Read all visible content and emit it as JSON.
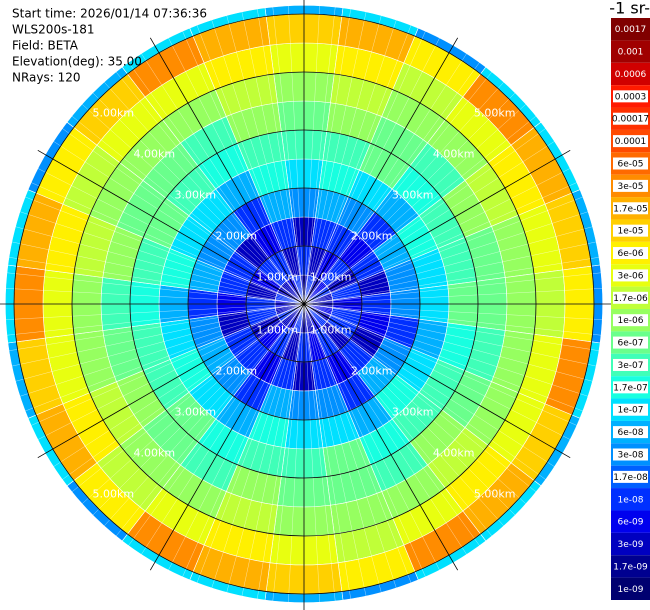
{
  "chart_data": {
    "type": "polar_heatmap",
    "info": [
      "Start time: 2026/01/14 07:36:36",
      "WLS200s-181",
      "Field: BETA",
      "Elevation(deg): 35.00",
      "NRays: 120"
    ],
    "colorbar_title": "-1 sr-",
    "azimuths_deg": [
      0,
      15,
      30,
      45,
      60,
      75,
      90,
      105,
      120,
      135,
      150,
      165,
      180,
      195,
      210,
      225,
      240,
      255,
      270,
      285,
      300,
      315,
      330,
      345
    ],
    "range_edges_km": [
      0,
      0.5,
      1,
      1.5,
      2,
      2.5,
      3,
      3.5,
      4,
      4.5,
      5,
      5.15
    ],
    "range_rings": [
      {
        "value": 1,
        "label": "1.00km"
      },
      {
        "value": 2,
        "label": "2.00km"
      },
      {
        "value": 3,
        "label": "3.00km"
      },
      {
        "value": 4,
        "label": "4.00km"
      },
      {
        "value": 5,
        "label": "5.00km"
      }
    ],
    "levels": [
      {
        "value": 0.0017,
        "color": "#800000"
      },
      {
        "value": 0.001,
        "color": "#a00000"
      },
      {
        "value": 0.0006,
        "color": "#d00000"
      },
      {
        "value": 0.0003,
        "color": "#ff1a00"
      },
      {
        "value": 0.00017,
        "color": "#ff3000"
      },
      {
        "value": 0.0001,
        "color": "#ff4a00"
      },
      {
        "value": 6e-05,
        "label": "6e-05",
        "color": "#ff6a00"
      },
      {
        "value": 3e-05,
        "label": "3e-05",
        "color": "#ff8c00"
      },
      {
        "value": 1.7e-05,
        "label": "1.7e-05",
        "color": "#ffb000"
      },
      {
        "value": 1e-05,
        "label": "1e-05",
        "color": "#ffd000"
      },
      {
        "value": 6e-06,
        "label": "6e-06",
        "color": "#fff000"
      },
      {
        "value": 3e-06,
        "label": "3e-06",
        "color": "#e8ff10"
      },
      {
        "value": 1.7e-06,
        "label": "1.7e-06",
        "color": "#c0ff38"
      },
      {
        "value": 1e-06,
        "label": "1e-06",
        "color": "#96ff60"
      },
      {
        "value": 6e-07,
        "label": "6e-07",
        "color": "#6aff8c"
      },
      {
        "value": 3e-07,
        "label": "3e-07",
        "color": "#40ffb8"
      },
      {
        "value": 1.7e-07,
        "label": "1.7e-07",
        "color": "#18ffe0"
      },
      {
        "value": 1e-07,
        "label": "1e-07",
        "color": "#00e0ff"
      },
      {
        "value": 6e-08,
        "label": "6e-08",
        "color": "#00b0ff"
      },
      {
        "value": 3e-08,
        "label": "3e-08",
        "color": "#0090ff"
      },
      {
        "value": 1.7e-08,
        "label": "1.7e-08",
        "color": "#0060ff"
      },
      {
        "value": 1e-08,
        "label": "1e-08",
        "color": "#0030ff"
      },
      {
        "value": 6e-09,
        "label": "6e-09",
        "color": "#0000ee"
      },
      {
        "value": 3e-09,
        "label": "3e-09",
        "color": "#0000c0"
      },
      {
        "value": 1.7e-09,
        "label": "1.7e-09",
        "color": "#000090"
      },
      {
        "value": 1e-09,
        "label": "1e-09",
        "color": "#000070"
      }
    ],
    "values": [
      [
        3e-09,
        1e-08,
        3e-09,
        3e-08,
        1e-07,
        3e-07,
        6e-07,
        1e-06,
        3e-06,
        1e-05,
        6e-08
      ],
      [
        1e-08,
        3e-09,
        1e-08,
        6e-08,
        1.7e-07,
        3e-07,
        1e-06,
        1.7e-06,
        6e-06,
        1.7e-05,
        1e-07
      ],
      [
        3e-09,
        6e-09,
        1e-08,
        3e-08,
        1e-07,
        6e-07,
        6e-07,
        1e-06,
        1.7e-06,
        6e-06,
        3e-08
      ],
      [
        6e-09,
        1e-08,
        6e-09,
        1e-08,
        6e-08,
        1.7e-07,
        3e-07,
        1e-06,
        3e-06,
        3e-05,
        1e-07
      ],
      [
        1e-08,
        3e-09,
        1e-08,
        6e-08,
        1.7e-07,
        3e-07,
        1e-06,
        1.7e-06,
        6e-06,
        1.7e-05,
        1e-07
      ],
      [
        3e-09,
        1e-08,
        3e-09,
        3e-08,
        1e-07,
        3e-07,
        6e-07,
        1e-06,
        3e-06,
        1e-05,
        6e-08
      ],
      [
        3e-09,
        6e-09,
        1e-08,
        3e-08,
        1e-07,
        6e-07,
        6e-07,
        1e-06,
        1.7e-06,
        6e-06,
        3e-08
      ],
      [
        6e-09,
        1e-08,
        6e-09,
        1e-08,
        6e-08,
        1.7e-07,
        3e-07,
        1e-06,
        3e-06,
        3e-05,
        1e-07
      ],
      [
        3e-09,
        1e-08,
        3e-09,
        3e-08,
        1e-07,
        3e-07,
        6e-07,
        1e-06,
        3e-06,
        1e-05,
        6e-08
      ],
      [
        1e-08,
        3e-09,
        1e-08,
        6e-08,
        1.7e-07,
        3e-07,
        1e-06,
        1.7e-06,
        6e-06,
        1.7e-05,
        1e-07
      ],
      [
        6e-09,
        1e-08,
        6e-09,
        1e-08,
        6e-08,
        1.7e-07,
        3e-07,
        1e-06,
        3e-06,
        3e-05,
        1e-07
      ],
      [
        3e-09,
        6e-09,
        1e-08,
        3e-08,
        1e-07,
        6e-07,
        6e-07,
        1e-06,
        1.7e-06,
        6e-06,
        3e-08
      ],
      [
        3e-09,
        1e-08,
        3e-09,
        3e-08,
        1e-07,
        3e-07,
        6e-07,
        1e-06,
        3e-06,
        1e-05,
        6e-08
      ],
      [
        1e-08,
        3e-09,
        1e-08,
        6e-08,
        1.7e-07,
        3e-07,
        1e-06,
        1.7e-06,
        6e-06,
        1.7e-05,
        1e-07
      ],
      [
        6e-09,
        1e-08,
        6e-09,
        1e-08,
        6e-08,
        1.7e-07,
        3e-07,
        1e-06,
        3e-06,
        3e-05,
        1e-07
      ],
      [
        3e-09,
        6e-09,
        1e-08,
        3e-08,
        1e-07,
        6e-07,
        6e-07,
        1e-06,
        1.7e-06,
        6e-06,
        3e-08
      ],
      [
        1e-08,
        3e-09,
        1e-08,
        6e-08,
        1.7e-07,
        3e-07,
        1e-06,
        1.7e-06,
        6e-06,
        1.7e-05,
        1e-07
      ],
      [
        3e-09,
        1e-08,
        3e-09,
        3e-08,
        1e-07,
        3e-07,
        6e-07,
        1e-06,
        3e-06,
        1e-05,
        6e-08
      ],
      [
        6e-09,
        1e-08,
        6e-09,
        1e-08,
        6e-08,
        1.7e-07,
        3e-07,
        1e-06,
        3e-06,
        3e-05,
        1e-07
      ],
      [
        1e-08,
        3e-09,
        1e-08,
        6e-08,
        1.7e-07,
        3e-07,
        1e-06,
        1.7e-06,
        6e-06,
        1.7e-05,
        1e-07
      ],
      [
        3e-09,
        6e-09,
        1e-08,
        3e-08,
        1e-07,
        6e-07,
        6e-07,
        1e-06,
        1.7e-06,
        6e-06,
        3e-08
      ],
      [
        3e-09,
        1e-08,
        3e-09,
        3e-08,
        1e-07,
        3e-07,
        6e-07,
        1e-06,
        3e-06,
        1e-05,
        6e-08
      ],
      [
        6e-09,
        1e-08,
        6e-09,
        1e-08,
        6e-08,
        1.7e-07,
        3e-07,
        1e-06,
        3e-06,
        3e-05,
        1e-07
      ],
      [
        1e-08,
        3e-09,
        1e-08,
        6e-08,
        1.7e-07,
        3e-07,
        1e-06,
        1.7e-06,
        6e-06,
        1.7e-05,
        1e-07
      ]
    ]
  }
}
